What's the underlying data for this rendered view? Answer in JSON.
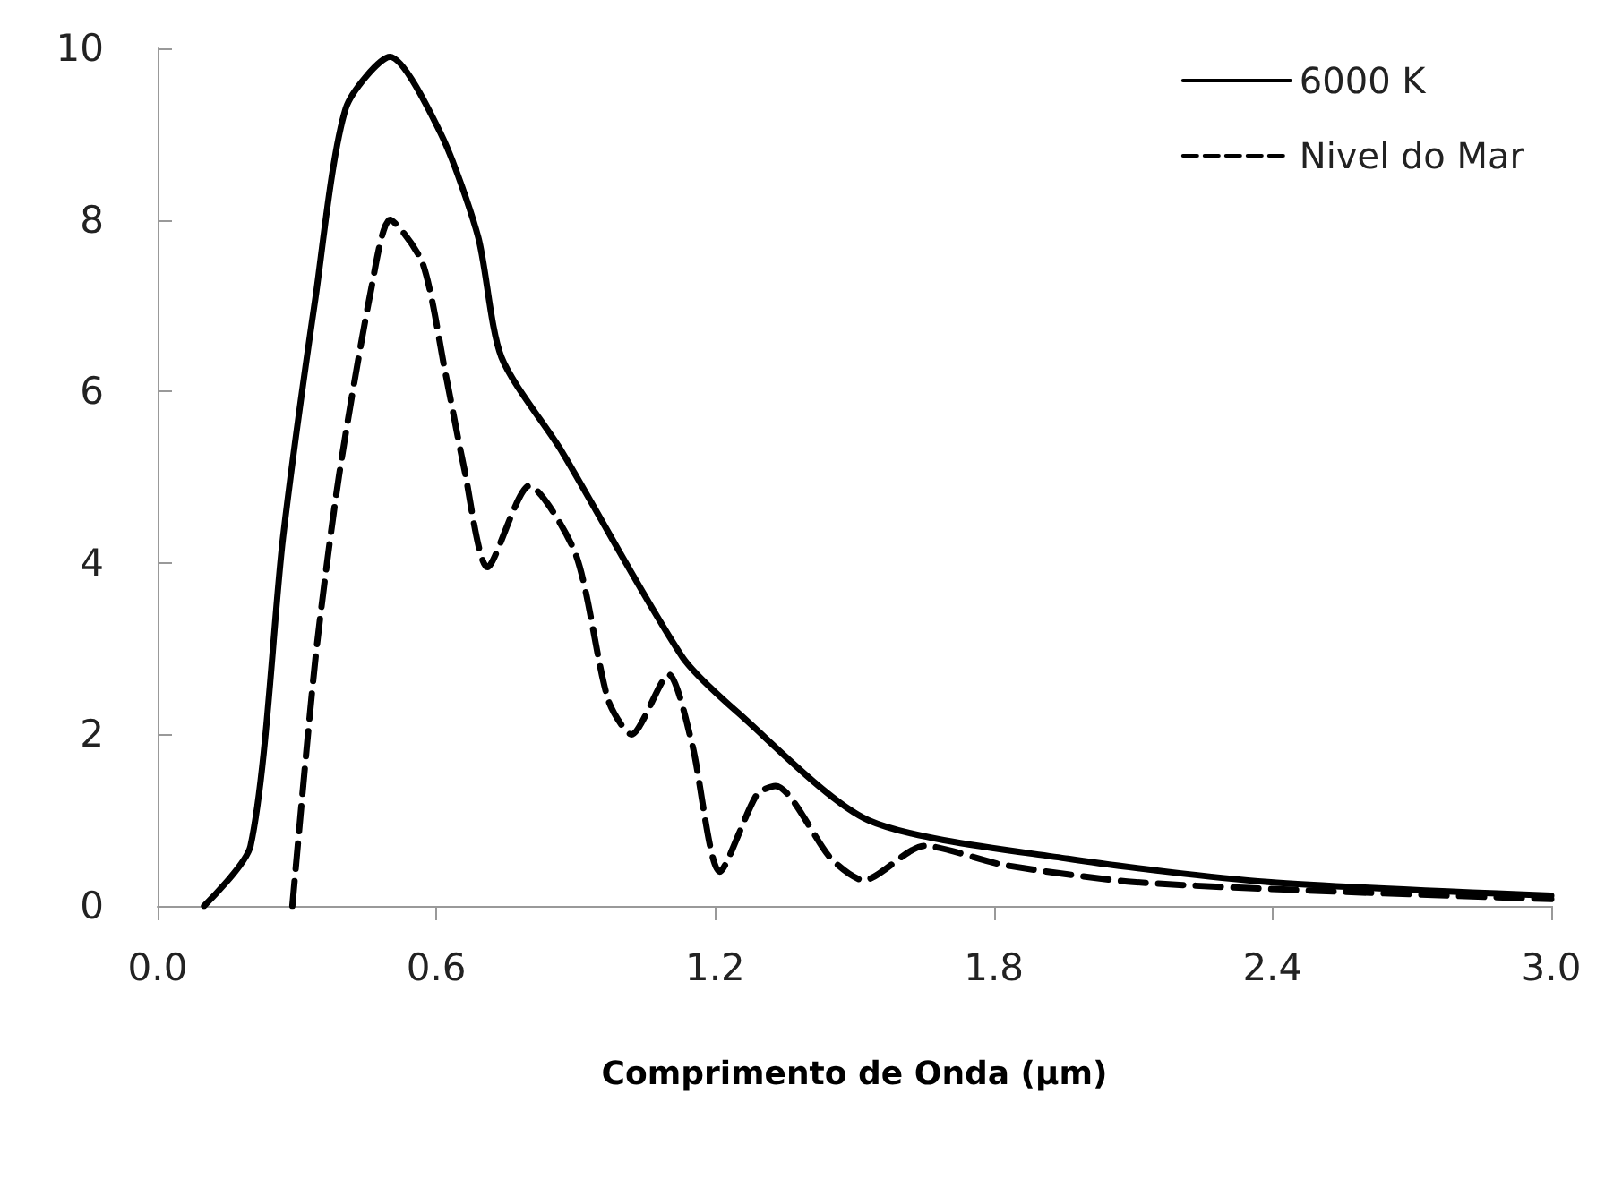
{
  "chart_data": {
    "type": "line",
    "xlabel": "Comprimento de Onda (µm)",
    "xlim": [
      0,
      3.0
    ],
    "xticks": [
      {
        "value": 0,
        "label": "0.0"
      },
      {
        "value": 0.6,
        "label": "0.6"
      },
      {
        "value": 1.2,
        "label": "1.2"
      },
      {
        "value": 1.8,
        "label": "1.8"
      },
      {
        "value": 2.4,
        "label": "2.4"
      },
      {
        "value": 3.0,
        "label": "3.0"
      }
    ],
    "ylim": [
      0,
      10
    ],
    "yticks": [
      0,
      2,
      4,
      6,
      8,
      10
    ],
    "grid": false,
    "legend": "top right",
    "marker": "none",
    "series": [
      {
        "name": "6000 K",
        "color": "#000000",
        "line_style": "solid",
        "x": [
          0.1,
          0.2,
          0.27,
          0.34,
          0.405,
          0.5,
          0.61,
          0.69,
          0.74,
          0.87,
          1.13,
          1.25,
          1.53,
          1.96,
          2.39,
          3.0
        ],
        "values": [
          0,
          0.7,
          4.3,
          7.1,
          9.3,
          9.9,
          9.0,
          7.8,
          6.4,
          5.3,
          2.9,
          2.25,
          1.0,
          0.55,
          0.28,
          0.12
        ]
      },
      {
        "name": "Nivel do Mar",
        "color": "#000000",
        "line_style": "dashed",
        "x": [
          0.29,
          0.34,
          0.39,
          0.46,
          0.5,
          0.57,
          0.62,
          0.66,
          0.71,
          0.8,
          0.9,
          0.97,
          1.02,
          1.1,
          1.15,
          1.21,
          1.29,
          1.33,
          1.45,
          1.52,
          1.65,
          1.82,
          2.1,
          2.53,
          3.0
        ],
        "values": [
          0,
          2.9,
          5.0,
          7.2,
          8.0,
          7.5,
          6.2,
          5.1,
          3.95,
          4.9,
          4.1,
          2.4,
          2.0,
          2.7,
          1.9,
          0.4,
          1.3,
          1.4,
          0.55,
          0.3,
          0.7,
          0.48,
          0.28,
          0.17,
          0.08
        ]
      }
    ]
  }
}
